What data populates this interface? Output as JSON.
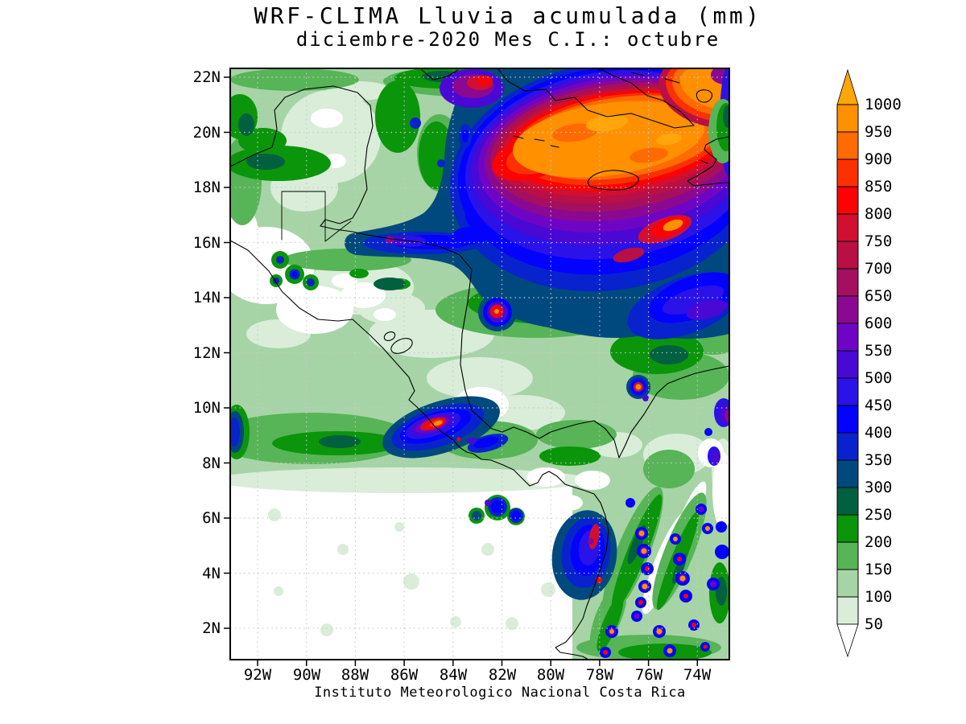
{
  "title": {
    "line1": "WRF-CLIMA Lluvia acumulada (mm)",
    "line2": "diciembre-2020 Mes C.I.: octubre"
  },
  "footer": "Instituto Meteorologico Nacional Costa Rica",
  "chart_data": {
    "type": "heatmap",
    "title": "WRF-CLIMA Lluvia acumulada (mm)",
    "subtitle": "diciembre-2020 Mes C.I.: octubre",
    "variable": "accumulated rainfall",
    "units": "mm",
    "model": "WRF-CLIMA",
    "valid_month": "diciembre-2020",
    "init_month": "octubre",
    "source": "Instituto Meteorologico Nacional Costa Rica",
    "lat_ticks": [
      "22N",
      "20N",
      "18N",
      "16N",
      "14N",
      "12N",
      "10N",
      "8N",
      "6N",
      "4N",
      "2N"
    ],
    "lon_ticks": [
      "92W",
      "90W",
      "88W",
      "86W",
      "84W",
      "82W",
      "80W",
      "78W",
      "76W",
      "74W"
    ],
    "lat_range_deg_n": [
      0.9,
      22.3
    ],
    "lon_range_deg_w": [
      93.1,
      72.7
    ],
    "grid": "dashed gray every 2 degrees",
    "colorbar": {
      "levels_mm": [
        1000,
        950,
        900,
        850,
        800,
        750,
        700,
        650,
        600,
        550,
        500,
        450,
        400,
        350,
        300,
        250,
        200,
        150,
        100,
        50
      ],
      "segments": [
        {
          "range": ">1000",
          "color": "#ffa60a",
          "shape": "arrow-up"
        },
        {
          "range": "950-1000",
          "color": "#ff9000"
        },
        {
          "range": "900-950",
          "color": "#ff6b00"
        },
        {
          "range": "850-900",
          "color": "#fc3000"
        },
        {
          "range": "800-850",
          "color": "#fd0202"
        },
        {
          "range": "750-800",
          "color": "#d10f30"
        },
        {
          "range": "700-750",
          "color": "#b80f45"
        },
        {
          "range": "650-700",
          "color": "#a50f60"
        },
        {
          "range": "600-650",
          "color": "#8b0990"
        },
        {
          "range": "550-600",
          "color": "#6f05c4"
        },
        {
          "range": "500-550",
          "color": "#4a08d4"
        },
        {
          "range": "450-500",
          "color": "#2a12e8"
        },
        {
          "range": "400-450",
          "color": "#0202fe"
        },
        {
          "range": "350-400",
          "color": "#0823cd"
        },
        {
          "range": "300-350",
          "color": "#00497e"
        },
        {
          "range": "250-300",
          "color": "#00603f"
        },
        {
          "range": "200-250",
          "color": "#0a950a"
        },
        {
          "range": "150-200",
          "color": "#57b457"
        },
        {
          "range": "100-150",
          "color": "#a6d4a6"
        },
        {
          "range": "50-100",
          "color": "#d9edd9"
        }
      ],
      "underflow": {
        "range": "<50",
        "color": "#ffffff",
        "shape": "arrow-down"
      }
    },
    "features": [
      {
        "region": "NW Caribbean around Cuba, Jamaica and Hispaniola (17N-22N, 74W-82W)",
        "value_mm": ">1000 broad maximum"
      },
      {
        "region": "Ring around Caribbean maximum extending SE to map edge (13N-17N)",
        "value_mm": "400-800"
      },
      {
        "region": "Pacific SW of Costa Rica (approx 9N, 84W-85W)",
        "value_mm": "800-1000 local maximum"
      },
      {
        "region": "Caribbean coast of Colombia (approx 10.7N, 76.4W)",
        "value_mm": "approx 1000 small cell"
      },
      {
        "region": "Colombian Andes / W Colombia (1N-7N, 73W-78W)",
        "value_mm": "isolated cells >1000 over 200-400 background"
      },
      {
        "region": "Offshore band north of Honduras (approx 16N, 82W-88W)",
        "value_mm": "400-650"
      },
      {
        "region": "Gulf of Mexico / NW Caribbean background",
        "value_mm": "100-300"
      },
      {
        "region": "Yucatan Peninsula and central Nicaragua",
        "value_mm": "50-150"
      },
      {
        "region": "Eastern Pacific south of 7N and Guatemala Pacific coast",
        "value_mm": "<50"
      }
    ]
  }
}
